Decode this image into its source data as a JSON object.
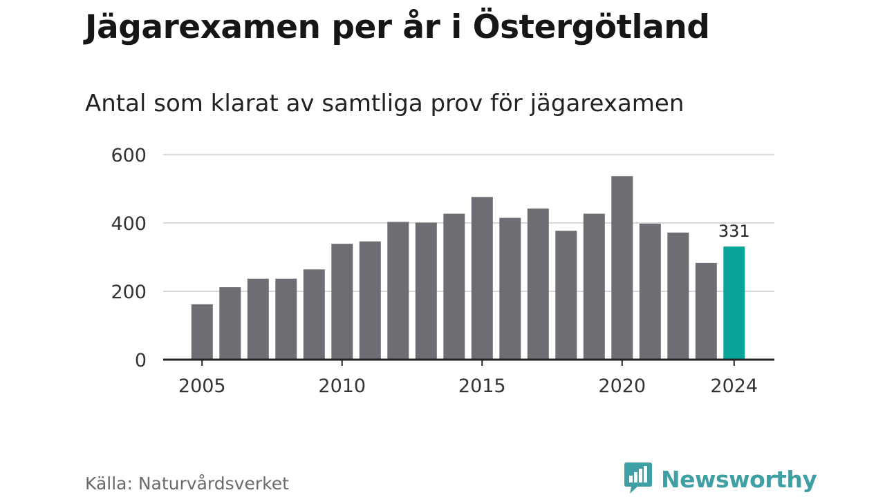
{
  "header": {
    "title": "Jägarexamen per år i Östergötland",
    "subtitle": "Antal som klarat av samtliga prov för jägarexamen"
  },
  "footer": {
    "source": "Källa: Naturvårdsverket",
    "brand": "Newsworthy",
    "brand_icon": "newsworthy-logo-icon"
  },
  "colors": {
    "bar": "#6e6d74",
    "highlight": "#0aa59a",
    "brand": "#3ea0a4",
    "grid": "#d9d9d9",
    "axis": "#222222"
  },
  "chart_data": {
    "type": "bar",
    "title": "Jägarexamen per år i Östergötland",
    "subtitle": "Antal som klarat av samtliga prov för jägarexamen",
    "x": [
      2005,
      2006,
      2007,
      2008,
      2009,
      2010,
      2011,
      2012,
      2013,
      2014,
      2015,
      2016,
      2017,
      2018,
      2019,
      2020,
      2021,
      2022,
      2023,
      2024
    ],
    "values": [
      162,
      212,
      237,
      237,
      264,
      339,
      346,
      403,
      401,
      427,
      476,
      415,
      442,
      377,
      427,
      537,
      398,
      372,
      283,
      331
    ],
    "highlight_index": 19,
    "highlight_label": "331",
    "x_tick_labels": [
      "2005",
      "2010",
      "2015",
      "2020",
      "2024"
    ],
    "y_ticks": [
      0,
      200,
      400,
      600
    ],
    "ylim": [
      0,
      600
    ],
    "grid": true,
    "legend": "none",
    "xlabel": "",
    "ylabel": ""
  }
}
